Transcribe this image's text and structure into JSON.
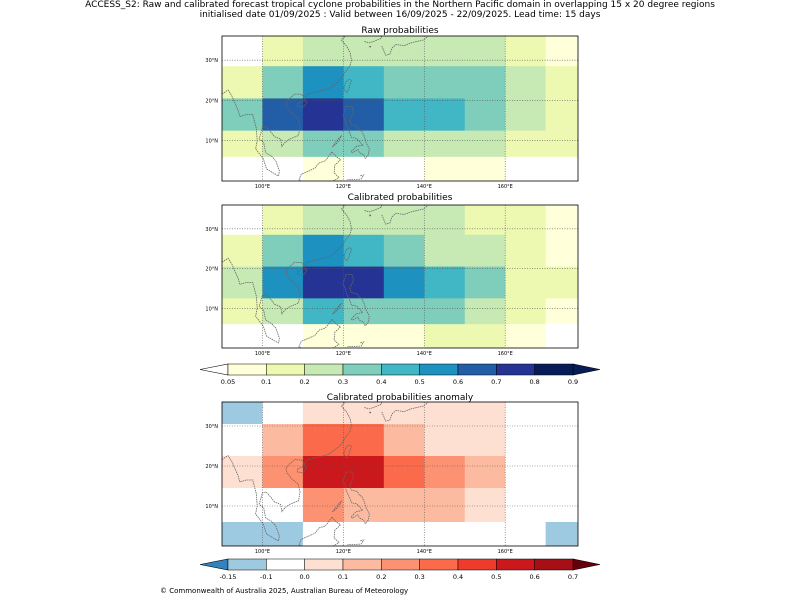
{
  "figure": {
    "title_line1": "ACCESS_S2: Raw and calibrated forecast tropical cyclone probabilities in the Northern Pacific domain in overlapping 15 x 20 degree regions",
    "title_line2": "initialised date 01/09/2025 :  Valid between 16/09/2025 - 22/09/2025. Lead time: 15 days",
    "footer": "© Commonwealth of Australia 2025, Australian Bureau of Meteorology"
  },
  "chart_data": [
    {
      "type": "heatmap",
      "title": "Raw probabilities",
      "x_ticks": [
        {
          "value": 100,
          "label": "100°E"
        },
        {
          "value": 120,
          "label": "120°E"
        },
        {
          "value": 140,
          "label": "140°E"
        },
        {
          "value": 160,
          "label": "160°E"
        }
      ],
      "y_ticks": [
        {
          "value": 10,
          "label": "10°N"
        },
        {
          "value": 20,
          "label": "20°N"
        },
        {
          "value": 30,
          "label": "30°N"
        }
      ],
      "xlim": [
        90,
        178
      ],
      "ylim": [
        0,
        36
      ],
      "grid": true,
      "cell_lon_edges": [
        90,
        100,
        110,
        120,
        130,
        140,
        150,
        160,
        170,
        178
      ],
      "cell_lat_edges": [
        0,
        6,
        12.5,
        20.5,
        28.5,
        36
      ],
      "rows_north_to_south": [
        [
          null,
          0.125,
          0.25,
          0.25,
          0.25,
          0.25,
          0.25,
          0.125,
          0.075
        ],
        [
          0.125,
          0.35,
          0.55,
          0.45,
          0.35,
          0.35,
          0.35,
          0.25,
          0.125
        ],
        [
          0.35,
          0.65,
          0.75,
          0.65,
          0.45,
          0.45,
          0.35,
          0.25,
          0.125
        ],
        [
          0.125,
          0.25,
          0.35,
          0.35,
          0.25,
          0.25,
          0.25,
          0.125,
          0.125
        ],
        [
          null,
          null,
          0.075,
          null,
          null,
          0.075,
          0.075,
          null,
          null
        ]
      ]
    },
    {
      "type": "heatmap",
      "title": "Calibrated probabilities",
      "x_ticks": [
        {
          "value": 100,
          "label": "100°E"
        },
        {
          "value": 120,
          "label": "120°E"
        },
        {
          "value": 140,
          "label": "140°E"
        },
        {
          "value": 160,
          "label": "160°E"
        }
      ],
      "y_ticks": [
        {
          "value": 10,
          "label": "10°N"
        },
        {
          "value": 20,
          "label": "20°N"
        },
        {
          "value": 30,
          "label": "30°N"
        }
      ],
      "xlim": [
        90,
        178
      ],
      "ylim": [
        0,
        36
      ],
      "grid": true,
      "cell_lon_edges": [
        90,
        100,
        110,
        120,
        130,
        140,
        150,
        160,
        170,
        178
      ],
      "cell_lat_edges": [
        0,
        6,
        12.5,
        20.5,
        28.5,
        36
      ],
      "rows_north_to_south": [
        [
          null,
          0.125,
          0.25,
          0.25,
          0.25,
          0.25,
          0.125,
          0.125,
          0.075
        ],
        [
          0.125,
          0.35,
          0.55,
          0.45,
          0.35,
          0.25,
          0.25,
          0.125,
          0.075
        ],
        [
          0.25,
          0.55,
          0.75,
          0.75,
          0.55,
          0.45,
          0.35,
          0.125,
          0.125
        ],
        [
          0.125,
          0.25,
          0.45,
          0.35,
          0.35,
          0.35,
          0.25,
          0.125,
          0.075
        ],
        [
          null,
          null,
          0.075,
          0.075,
          0.075,
          0.125,
          0.125,
          0.075,
          null
        ]
      ]
    },
    {
      "type": "heatmap",
      "title": "Calibrated probabilities anomaly",
      "x_ticks": [
        {
          "value": 100,
          "label": "100°E"
        },
        {
          "value": 120,
          "label": "120°E"
        },
        {
          "value": 140,
          "label": "140°E"
        },
        {
          "value": 160,
          "label": "160°E"
        }
      ],
      "y_ticks": [
        {
          "value": 10,
          "label": "10°N"
        },
        {
          "value": 20,
          "label": "20°N"
        },
        {
          "value": 30,
          "label": "30°N"
        }
      ],
      "xlim": [
        90,
        178
      ],
      "ylim": [
        0,
        36
      ],
      "grid": true,
      "cell_lon_edges": [
        90,
        100,
        110,
        120,
        130,
        140,
        150,
        160,
        170,
        178
      ],
      "cell_lat_edges": [
        0,
        6,
        14.5,
        22.5,
        30.5,
        36
      ],
      "rows_north_to_south": [
        [
          -0.125,
          null,
          0.05,
          0.05,
          0.05,
          0.05,
          0.05,
          null,
          -0.075
        ],
        [
          null,
          0.15,
          0.35,
          0.35,
          0.15,
          0.05,
          0.05,
          null,
          -0.075
        ],
        [
          0.05,
          0.25,
          0.55,
          0.55,
          0.35,
          0.25,
          0.15,
          null,
          null
        ],
        [
          null,
          null,
          0.25,
          0.15,
          0.15,
          0.15,
          0.05,
          null,
          -0.075
        ],
        [
          -0.125,
          -0.125,
          -0.075,
          -0.075,
          -0.075,
          null,
          null,
          -0.075,
          -0.125
        ]
      ]
    }
  ],
  "colorbars": [
    {
      "name": "probability",
      "tick_labels": [
        "0.05",
        "0.1",
        "0.2",
        "0.3",
        "0.4",
        "0.5",
        "0.6",
        "0.7",
        "0.8",
        "0.9"
      ],
      "low_extension_color": "#ffffff",
      "high_extension_color": "#081d58",
      "colors": [
        "#ffffd9",
        "#edf8b1",
        "#c7e9b4",
        "#7fcdbb",
        "#41b6c4",
        "#1d91c0",
        "#225ea8",
        "#253494",
        "#081d58"
      ]
    },
    {
      "name": "anomaly",
      "tick_labels": [
        "-0.15",
        "-0.1",
        "0.0",
        "0.1",
        "0.2",
        "0.3",
        "0.4",
        "0.5",
        "0.6",
        "0.7"
      ],
      "low_extension_color": "#3182bd",
      "high_extension_color": "#67000d",
      "colors": [
        "#9ecae1",
        "#ffffff",
        "#fee0d2",
        "#fcbba1",
        "#fc9272",
        "#fb6a4a",
        "#ef3b2c",
        "#cb181d",
        "#a50f15"
      ]
    }
  ]
}
